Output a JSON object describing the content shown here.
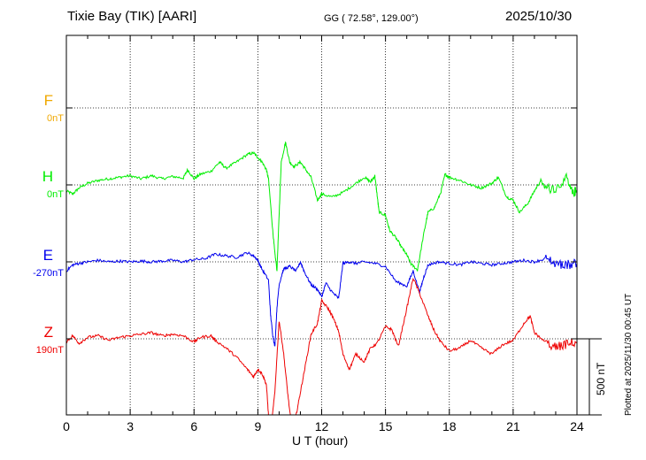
{
  "header": {
    "station": "Tixie Bay (TIK)  [AARI]",
    "coords": "GG ( 72.58°, 129.00°)",
    "date": "2025/10/30"
  },
  "footer": {
    "plotted": "Plotted at 2025/11/30 00:45 UT",
    "scale_label": "500 nT"
  },
  "chart_data": {
    "type": "line",
    "xlabel": "U T (hour)",
    "xlim": [
      0,
      24
    ],
    "xticks": [
      "0",
      "3",
      "6",
      "9",
      "12",
      "15",
      "18",
      "21",
      "24"
    ],
    "scale_bar_nT": 500,
    "series": [
      {
        "name": "F",
        "offset_label": "0nT",
        "color": "#f0a800",
        "points": []
      },
      {
        "name": "H",
        "offset_label": "0nT",
        "color": "#00ee00",
        "points": [
          [
            0.0,
            -40
          ],
          [
            0.3,
            -60
          ],
          [
            0.6,
            -20
          ],
          [
            1.0,
            10
          ],
          [
            1.5,
            30
          ],
          [
            2.0,
            40
          ],
          [
            2.5,
            50
          ],
          [
            3.0,
            60
          ],
          [
            3.5,
            40
          ],
          [
            4.0,
            60
          ],
          [
            4.5,
            40
          ],
          [
            5.0,
            55
          ],
          [
            5.5,
            45
          ],
          [
            5.7,
            100
          ],
          [
            6.0,
            40
          ],
          [
            6.3,
            70
          ],
          [
            6.8,
            90
          ],
          [
            7.2,
            150
          ],
          [
            7.5,
            110
          ],
          [
            8.0,
            150
          ],
          [
            8.5,
            200
          ],
          [
            8.8,
            210
          ],
          [
            9.0,
            180
          ],
          [
            9.2,
            150
          ],
          [
            9.4,
            100
          ],
          [
            9.5,
            40
          ],
          [
            9.7,
            -300
          ],
          [
            9.8,
            -450
          ],
          [
            9.9,
            -560
          ],
          [
            10.0,
            -200
          ],
          [
            10.1,
            150
          ],
          [
            10.3,
            280
          ],
          [
            10.5,
            150
          ],
          [
            10.7,
            120
          ],
          [
            11.0,
            150
          ],
          [
            11.2,
            110
          ],
          [
            11.5,
            50
          ],
          [
            11.8,
            -100
          ],
          [
            12.0,
            -60
          ],
          [
            12.5,
            -80
          ],
          [
            13.0,
            -50
          ],
          [
            13.5,
            0
          ],
          [
            14.0,
            50
          ],
          [
            14.3,
            20
          ],
          [
            14.5,
            60
          ],
          [
            14.6,
            -60
          ],
          [
            14.7,
            -180
          ],
          [
            15.0,
            -200
          ],
          [
            15.2,
            -300
          ],
          [
            15.5,
            -350
          ],
          [
            15.8,
            -420
          ],
          [
            16.0,
            -460
          ],
          [
            16.2,
            -520
          ],
          [
            16.5,
            -560
          ],
          [
            16.8,
            -320
          ],
          [
            17.0,
            -180
          ],
          [
            17.3,
            -150
          ],
          [
            17.6,
            -50
          ],
          [
            17.8,
            70
          ],
          [
            18.0,
            50
          ],
          [
            18.5,
            30
          ],
          [
            19.0,
            0
          ],
          [
            19.5,
            -20
          ],
          [
            20.0,
            10
          ],
          [
            20.3,
            50
          ],
          [
            20.7,
            -80
          ],
          [
            21.0,
            -100
          ],
          [
            21.3,
            -180
          ],
          [
            21.7,
            -120
          ],
          [
            22.0,
            -40
          ],
          [
            22.3,
            30
          ],
          [
            22.5,
            -20
          ],
          [
            23.0,
            -20
          ],
          [
            23.5,
            40
          ],
          [
            23.8,
            -60
          ],
          [
            24.0,
            -40
          ]
        ]
      },
      {
        "name": "E",
        "offset_label": "-270nT",
        "color": "#0000ee",
        "points": [
          [
            0.0,
            -60
          ],
          [
            0.3,
            -20
          ],
          [
            0.6,
            -10
          ],
          [
            1.0,
            0
          ],
          [
            1.5,
            10
          ],
          [
            2.0,
            0
          ],
          [
            2.5,
            5
          ],
          [
            3.0,
            0
          ],
          [
            3.5,
            5
          ],
          [
            4.0,
            0
          ],
          [
            4.5,
            5
          ],
          [
            5.0,
            10
          ],
          [
            5.5,
            0
          ],
          [
            6.0,
            15
          ],
          [
            6.5,
            20
          ],
          [
            7.0,
            50
          ],
          [
            7.5,
            40
          ],
          [
            8.0,
            30
          ],
          [
            8.5,
            60
          ],
          [
            8.8,
            40
          ],
          [
            9.0,
            10
          ],
          [
            9.2,
            -50
          ],
          [
            9.5,
            -120
          ],
          [
            9.6,
            -350
          ],
          [
            9.7,
            -480
          ],
          [
            9.8,
            -560
          ],
          [
            9.9,
            -300
          ],
          [
            10.0,
            -150
          ],
          [
            10.2,
            -50
          ],
          [
            10.5,
            -30
          ],
          [
            10.8,
            -60
          ],
          [
            11.0,
            0
          ],
          [
            11.2,
            -70
          ],
          [
            11.5,
            -150
          ],
          [
            11.8,
            -180
          ],
          [
            12.0,
            -230
          ],
          [
            12.2,
            -140
          ],
          [
            12.5,
            -200
          ],
          [
            12.8,
            -240
          ],
          [
            13.0,
            -10
          ],
          [
            13.3,
            0
          ],
          [
            13.6,
            -10
          ],
          [
            14.0,
            0
          ],
          [
            14.5,
            -10
          ],
          [
            15.0,
            -30
          ],
          [
            15.5,
            -130
          ],
          [
            16.0,
            -160
          ],
          [
            16.3,
            -60
          ],
          [
            16.6,
            -200
          ],
          [
            16.8,
            -100
          ],
          [
            17.0,
            -20
          ],
          [
            17.5,
            0
          ],
          [
            18.0,
            -10
          ],
          [
            18.5,
            -20
          ],
          [
            19.0,
            0
          ],
          [
            19.5,
            -10
          ],
          [
            20.0,
            -20
          ],
          [
            20.5,
            -10
          ],
          [
            21.0,
            0
          ],
          [
            21.5,
            10
          ],
          [
            22.0,
            0
          ],
          [
            22.5,
            20
          ],
          [
            23.0,
            -10
          ],
          [
            23.5,
            -20
          ],
          [
            24.0,
            -10
          ]
        ]
      },
      {
        "name": "Z",
        "offset_label": "190nT",
        "color": "#ee0000",
        "points": [
          [
            0.0,
            -20
          ],
          [
            0.3,
            20
          ],
          [
            0.6,
            -30
          ],
          [
            1.0,
            10
          ],
          [
            1.5,
            20
          ],
          [
            2.0,
            -10
          ],
          [
            2.5,
            10
          ],
          [
            3.0,
            20
          ],
          [
            3.5,
            30
          ],
          [
            4.0,
            40
          ],
          [
            4.5,
            20
          ],
          [
            5.0,
            30
          ],
          [
            5.5,
            20
          ],
          [
            6.0,
            -20
          ],
          [
            6.3,
            10
          ],
          [
            6.8,
            20
          ],
          [
            7.0,
            -10
          ],
          [
            7.5,
            -60
          ],
          [
            8.0,
            -120
          ],
          [
            8.5,
            -200
          ],
          [
            8.8,
            -250
          ],
          [
            9.0,
            -200
          ],
          [
            9.2,
            -230
          ],
          [
            9.4,
            -300
          ],
          [
            9.5,
            -500
          ],
          [
            9.6,
            -620
          ],
          [
            9.8,
            -350
          ],
          [
            10.0,
            120
          ],
          [
            10.2,
            -80
          ],
          [
            10.4,
            -350
          ],
          [
            10.6,
            -600
          ],
          [
            10.8,
            -500
          ],
          [
            11.0,
            -350
          ],
          [
            11.2,
            -200
          ],
          [
            11.5,
            30
          ],
          [
            11.8,
            100
          ],
          [
            12.0,
            250
          ],
          [
            12.3,
            200
          ],
          [
            12.5,
            150
          ],
          [
            12.8,
            50
          ],
          [
            13.0,
            -100
          ],
          [
            13.3,
            -200
          ],
          [
            13.6,
            -100
          ],
          [
            14.0,
            -150
          ],
          [
            14.3,
            -60
          ],
          [
            14.6,
            -30
          ],
          [
            15.0,
            80
          ],
          [
            15.3,
            60
          ],
          [
            15.6,
            -50
          ],
          [
            16.0,
            200
          ],
          [
            16.3,
            400
          ],
          [
            16.6,
            300
          ],
          [
            17.0,
            150
          ],
          [
            17.3,
            50
          ],
          [
            17.6,
            -20
          ],
          [
            18.0,
            -80
          ],
          [
            18.5,
            -60
          ],
          [
            19.0,
            -10
          ],
          [
            19.5,
            -60
          ],
          [
            20.0,
            -100
          ],
          [
            20.5,
            -40
          ],
          [
            21.0,
            -10
          ],
          [
            21.5,
            100
          ],
          [
            21.8,
            150
          ],
          [
            22.0,
            40
          ],
          [
            22.5,
            -20
          ],
          [
            23.0,
            -60
          ],
          [
            23.5,
            -40
          ],
          [
            24.0,
            -20
          ]
        ]
      }
    ]
  }
}
